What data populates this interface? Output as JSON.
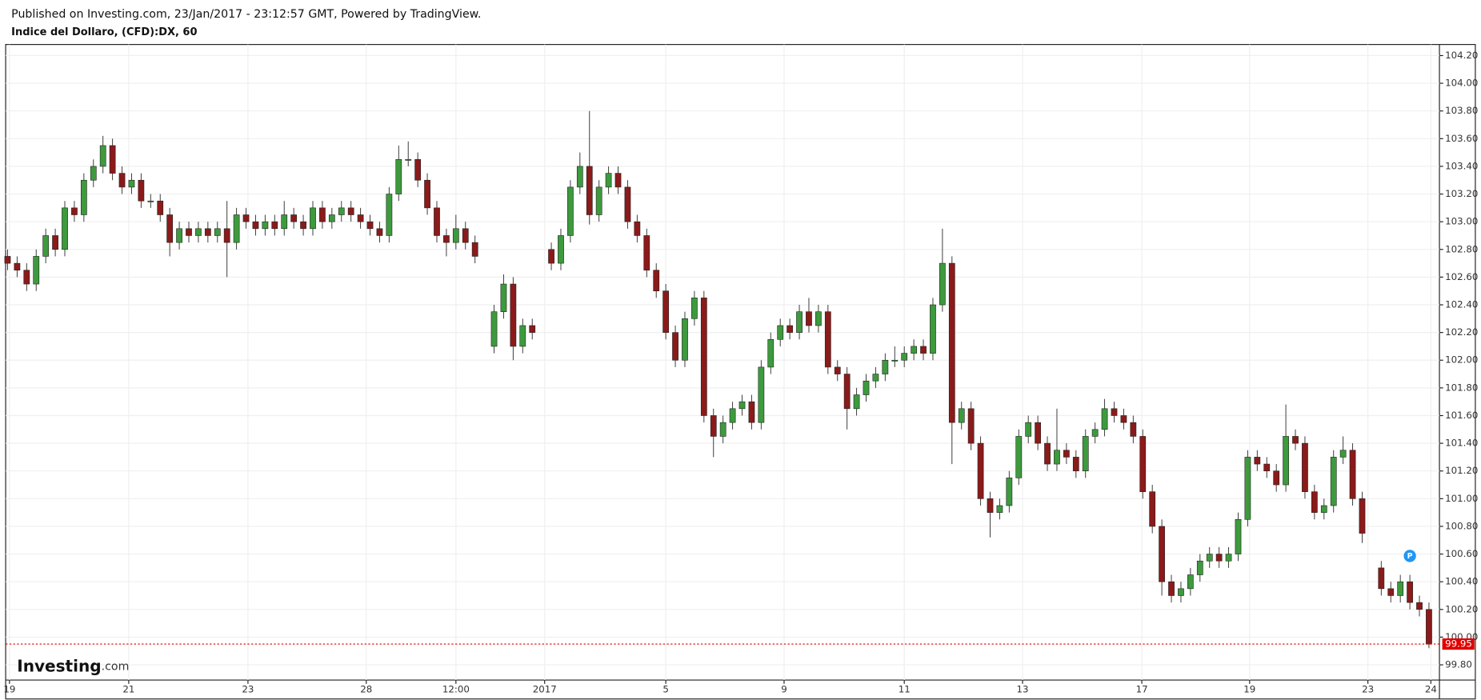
{
  "published": "Published on Investing.com, 23/Jan/2017 - 23:12:57 GMT, Powered by TradingView.",
  "chart_data": {
    "type": "candlestick",
    "title": "Indice del Dollaro, (CFD):DX, 60",
    "up_color": "#3d9a3d",
    "down_color": "#8b1a1a",
    "grid": true,
    "open": [
      102.75,
      102.7,
      102.65,
      102.55,
      102.75,
      102.9,
      102.8,
      103.1,
      103.05,
      103.3,
      103.4,
      103.55,
      103.35,
      103.25,
      103.3,
      103.15,
      103.15,
      103.05,
      102.85,
      102.95,
      102.9,
      102.95,
      102.9,
      102.95,
      102.85,
      103.05,
      103.0,
      102.95,
      103.0,
      102.95,
      103.05,
      103.0,
      102.95,
      103.1,
      103.0,
      103.05,
      103.1,
      103.05,
      103.0,
      102.95,
      102.9,
      103.2,
      103.45,
      103.45,
      103.3,
      103.1,
      102.9,
      102.85,
      102.95,
      102.85,
      null,
      102.1,
      102.35,
      102.55,
      102.1,
      102.25,
      null,
      102.8,
      102.7,
      102.9,
      103.25,
      103.4,
      103.05,
      103.25,
      103.35,
      103.25,
      103.0,
      102.9,
      102.65,
      102.5,
      102.2,
      102.0,
      102.3,
      102.45,
      101.6,
      101.45,
      101.55,
      101.65,
      101.7,
      101.55,
      101.95,
      102.15,
      102.25,
      102.2,
      102.35,
      102.25,
      102.35,
      101.95,
      101.9,
      101.65,
      101.75,
      101.85,
      101.9,
      102.0,
      102.0,
      102.05,
      102.1,
      102.05,
      102.4,
      102.7,
      101.55,
      101.65,
      101.4,
      101.0,
      100.9,
      100.95,
      101.15,
      101.45,
      101.55,
      101.4,
      101.25,
      101.35,
      101.3,
      101.2,
      101.45,
      101.5,
      101.65,
      101.6,
      101.55,
      101.45,
      101.05,
      100.8,
      100.4,
      100.3,
      100.35,
      100.45,
      100.55,
      100.6,
      100.55,
      100.6,
      100.85,
      101.3,
      101.25,
      101.2,
      101.1,
      101.45,
      101.4,
      101.05,
      100.9,
      100.95,
      101.3,
      101.35,
      101.0,
      null,
      100.5,
      100.35,
      100.3,
      100.4,
      100.25,
      100.2
    ],
    "high": [
      102.8,
      102.75,
      102.7,
      102.8,
      102.95,
      102.95,
      103.15,
      103.15,
      103.35,
      103.45,
      103.62,
      103.6,
      103.4,
      103.35,
      103.35,
      103.2,
      103.2,
      103.1,
      103.0,
      103.0,
      103.0,
      103.0,
      103.0,
      103.15,
      103.1,
      103.1,
      103.05,
      103.05,
      103.05,
      103.15,
      103.1,
      103.05,
      103.15,
      103.15,
      103.1,
      103.15,
      103.15,
      103.1,
      103.05,
      103.0,
      103.25,
      103.55,
      103.58,
      103.5,
      103.35,
      103.15,
      102.95,
      103.05,
      103.0,
      102.9,
      null,
      102.4,
      102.62,
      102.6,
      102.3,
      102.3,
      null,
      102.85,
      102.95,
      103.3,
      103.5,
      103.8,
      103.3,
      103.4,
      103.4,
      103.3,
      103.05,
      102.95,
      102.7,
      102.55,
      102.25,
      102.35,
      102.5,
      102.5,
      101.65,
      101.6,
      101.7,
      101.75,
      101.75,
      102.0,
      102.2,
      102.3,
      102.3,
      102.4,
      102.45,
      102.4,
      102.4,
      102.0,
      101.95,
      101.8,
      101.9,
      101.95,
      102.05,
      102.1,
      102.1,
      102.15,
      102.15,
      102.45,
      102.95,
      102.75,
      101.7,
      101.7,
      101.45,
      101.05,
      101.0,
      101.2,
      101.5,
      101.6,
      101.6,
      101.45,
      101.65,
      101.4,
      101.35,
      101.5,
      101.55,
      101.72,
      101.7,
      101.65,
      101.6,
      101.5,
      101.1,
      100.85,
      100.45,
      100.4,
      100.5,
      100.6,
      100.65,
      100.65,
      100.65,
      100.9,
      101.35,
      101.35,
      101.3,
      101.25,
      101.68,
      101.5,
      101.45,
      101.1,
      101.0,
      101.35,
      101.45,
      101.4,
      101.05,
      null,
      100.55,
      100.4,
      100.45,
      100.45,
      100.3,
      100.25
    ],
    "low": [
      102.65,
      102.6,
      102.5,
      102.5,
      102.7,
      102.75,
      102.75,
      103.0,
      103.0,
      103.25,
      103.35,
      103.3,
      103.2,
      103.2,
      103.1,
      103.1,
      103.0,
      102.75,
      102.8,
      102.85,
      102.85,
      102.85,
      102.85,
      102.6,
      102.8,
      102.95,
      102.9,
      102.9,
      102.9,
      102.9,
      102.95,
      102.9,
      102.9,
      102.95,
      102.95,
      103.0,
      103.0,
      102.95,
      102.9,
      102.85,
      102.85,
      103.15,
      103.4,
      103.25,
      103.05,
      102.85,
      102.75,
      102.8,
      102.8,
      102.7,
      null,
      102.05,
      102.3,
      102.0,
      102.05,
      102.15,
      null,
      102.65,
      102.65,
      102.85,
      103.2,
      102.98,
      103.0,
      103.2,
      103.2,
      102.95,
      102.85,
      102.6,
      102.45,
      102.15,
      101.95,
      101.95,
      102.25,
      101.55,
      101.3,
      101.4,
      101.5,
      101.6,
      101.5,
      101.5,
      101.9,
      102.1,
      102.15,
      102.15,
      102.2,
      102.2,
      101.9,
      101.85,
      101.5,
      101.6,
      101.7,
      101.8,
      101.85,
      101.95,
      101.95,
      102.0,
      102.0,
      102.0,
      102.35,
      101.25,
      101.5,
      101.35,
      100.95,
      100.72,
      100.85,
      100.9,
      101.1,
      101.4,
      101.35,
      101.2,
      101.2,
      101.25,
      101.15,
      101.15,
      101.4,
      101.45,
      101.55,
      101.5,
      101.4,
      101.0,
      100.75,
      100.3,
      100.25,
      100.25,
      100.3,
      100.4,
      100.5,
      100.5,
      100.5,
      100.55,
      100.8,
      101.2,
      101.15,
      101.05,
      101.05,
      101.35,
      101.0,
      100.85,
      100.85,
      100.9,
      101.25,
      100.95,
      100.68,
      null,
      100.3,
      100.25,
      100.25,
      100.2,
      100.15,
      99.92
    ],
    "close": [
      102.7,
      102.65,
      102.55,
      102.75,
      102.9,
      102.8,
      103.1,
      103.05,
      103.3,
      103.4,
      103.55,
      103.35,
      103.25,
      103.3,
      103.15,
      103.15,
      103.05,
      102.85,
      102.95,
      102.9,
      102.95,
      102.9,
      102.95,
      102.85,
      103.05,
      103.0,
      102.95,
      103.0,
      102.95,
      103.05,
      103.0,
      102.95,
      103.1,
      103.0,
      103.05,
      103.1,
      103.05,
      103.0,
      102.95,
      102.9,
      103.2,
      103.45,
      103.45,
      103.3,
      103.1,
      102.9,
      102.85,
      102.95,
      102.85,
      102.75,
      null,
      102.35,
      102.55,
      102.1,
      102.25,
      102.2,
      null,
      102.7,
      102.9,
      103.25,
      103.4,
      103.05,
      103.25,
      103.35,
      103.25,
      103.0,
      102.9,
      102.65,
      102.5,
      102.2,
      102.0,
      102.3,
      102.45,
      101.6,
      101.45,
      101.55,
      101.65,
      101.7,
      101.55,
      101.95,
      102.15,
      102.25,
      102.2,
      102.35,
      102.25,
      102.35,
      101.95,
      101.9,
      101.65,
      101.75,
      101.85,
      101.9,
      102.0,
      102.0,
      102.05,
      102.1,
      102.05,
      102.4,
      102.7,
      101.55,
      101.65,
      101.4,
      101.0,
      100.9,
      100.95,
      101.15,
      101.45,
      101.55,
      101.4,
      101.25,
      101.35,
      101.3,
      101.2,
      101.45,
      101.5,
      101.65,
      101.6,
      101.55,
      101.45,
      101.05,
      100.8,
      100.4,
      100.3,
      100.35,
      100.45,
      100.55,
      100.6,
      100.55,
      100.6,
      100.85,
      101.3,
      101.25,
      101.2,
      101.1,
      101.45,
      101.4,
      101.05,
      100.9,
      100.95,
      101.3,
      101.35,
      101.0,
      100.75,
      null,
      100.35,
      100.3,
      100.4,
      100.25,
      100.2,
      99.95
    ],
    "xlim": [
      -0.2,
      150.1
    ],
    "xticks": [
      {
        "value": 0.2,
        "label": "19"
      },
      {
        "value": 12.7,
        "label": "21"
      },
      {
        "value": 25.2,
        "label": "23"
      },
      {
        "value": 37.6,
        "label": "28"
      },
      {
        "value": 47,
        "label": "12:00"
      },
      {
        "value": 56.3,
        "label": "2017"
      },
      {
        "value": 69,
        "label": "5"
      },
      {
        "value": 81.4,
        "label": "9"
      },
      {
        "value": 94,
        "label": "11"
      },
      {
        "value": 106.4,
        "label": "13"
      },
      {
        "value": 118.9,
        "label": "17"
      },
      {
        "value": 130.2,
        "label": "19"
      },
      {
        "value": 142.6,
        "label": "23"
      },
      {
        "value": 149.2,
        "label": "24"
      }
    ],
    "ylim": [
      99.69,
      104.28
    ],
    "yticks": [
      {
        "value": 99.8,
        "label": "99.80"
      },
      {
        "value": 100,
        "label": "100.00"
      },
      {
        "value": 100.2,
        "label": "100.20"
      },
      {
        "value": 100.4,
        "label": "100.40"
      },
      {
        "value": 100.6,
        "label": "100.60"
      },
      {
        "value": 100.8,
        "label": "100.80"
      },
      {
        "value": 101,
        "label": "101.00"
      },
      {
        "value": 101.2,
        "label": "101.20"
      },
      {
        "value": 101.4,
        "label": "101.40"
      },
      {
        "value": 101.6,
        "label": "101.60"
      },
      {
        "value": 101.8,
        "label": "101.80"
      },
      {
        "value": 102,
        "label": "102.00"
      },
      {
        "value": 102.2,
        "label": "102.20"
      },
      {
        "value": 102.4,
        "label": "102.40"
      },
      {
        "value": 102.6,
        "label": "102.60"
      },
      {
        "value": 102.8,
        "label": "102.80"
      },
      {
        "value": 103,
        "label": "103.00"
      },
      {
        "value": 103.2,
        "label": "103.20"
      },
      {
        "value": 103.4,
        "label": "103.40"
      },
      {
        "value": 103.6,
        "label": "103.60"
      },
      {
        "value": 103.8,
        "label": "103.80"
      },
      {
        "value": 104,
        "label": "104.00"
      },
      {
        "value": 104.2,
        "label": "104.20"
      }
    ],
    "last_price": 99.95,
    "last_price_color": "#e00000",
    "marker_label": "P",
    "logo": {
      "name": "Investing",
      "suffix": ".com"
    }
  }
}
